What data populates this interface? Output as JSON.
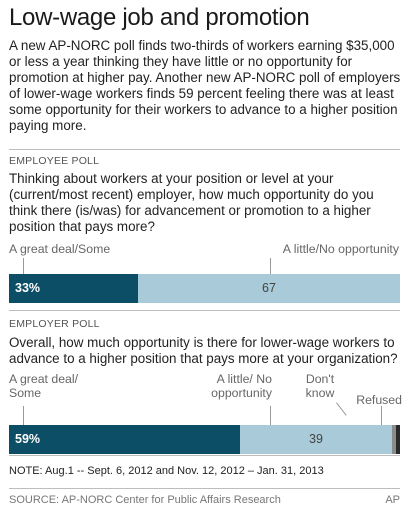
{
  "title": "Low-wage job and promotion",
  "intro": "A new AP-NORC poll finds two-thirds of workers earning $35,000 or less a year thinking they have little or no opportunity for promotion at higher pay. Another new AP-NORC poll of employers of lower-wage workers finds 59 percent feeling there was at least some opportunity for their workers to advance to a higher position paying more.",
  "colors": {
    "dark_teal": "#0d4e67",
    "light_blue": "#a8cad9",
    "gray": "#8c8c8c",
    "near_black": "#2a2a2a"
  },
  "chart_data": [
    {
      "type": "bar",
      "orientation": "horizontal-stacked",
      "section": "EMPLOYEE POLL",
      "question": "Thinking about workers at your position or level at your (current/most recent) employer, how much opportunity do you think there (is/was) for advancement or promotion to a higher position that pays more?",
      "categories": [
        "A great deal/Some",
        "A little/No opportunity"
      ],
      "values": [
        33,
        67
      ],
      "value_labels": [
        "33%",
        "67"
      ],
      "colors": [
        "#0d4e67",
        "#a8cad9"
      ]
    },
    {
      "type": "bar",
      "orientation": "horizontal-stacked",
      "section": "EMPLOYER POLL",
      "question": "Overall, how much opportunity is there for lower-wage workers to advance to a higher position that pays more at your organization?",
      "categories": [
        "A great deal/ Some",
        "A little/ No opportunity",
        "Don't know",
        "Refused"
      ],
      "values": [
        59,
        39,
        1,
        1
      ],
      "value_labels": [
        "59%",
        "39",
        "",
        ""
      ],
      "colors": [
        "#0d4e67",
        "#a8cad9",
        "#8c8c8c",
        "#2a2a2a"
      ]
    }
  ],
  "note": "NOTE: Aug.1 -- Sept. 6, 2012 and Nov. 12, 2012 – Jan. 31, 2013",
  "source": "SOURCE: AP-NORC Center for Public Affairs Research",
  "credit": "AP"
}
